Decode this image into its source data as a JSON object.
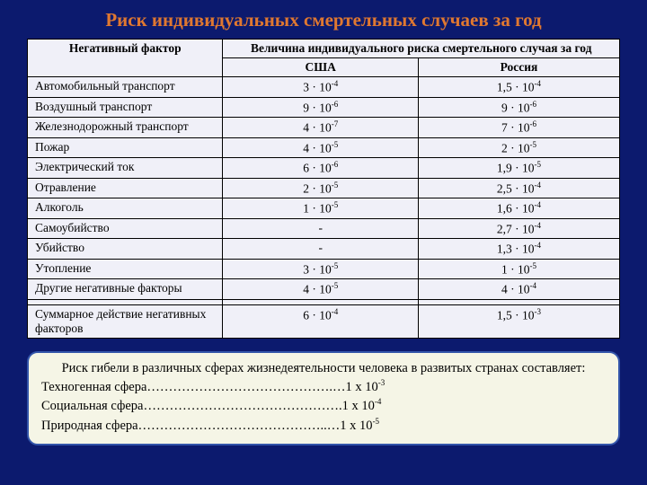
{
  "title": "Риск индивидуальных смертельных случаев за год",
  "table": {
    "header": {
      "factor": "Негативный фактор",
      "risk": "Величина индивидуального риска смертельного случая за год",
      "usa": "США",
      "russia": "Россия"
    },
    "rows": [
      {
        "factor": "Автомобильный транспорт",
        "usa_m": "3",
        "usa_e": "-4",
        "ru_m": "1,5",
        "ru_e": "-4"
      },
      {
        "factor": "Воздушный транспорт",
        "usa_m": "9",
        "usa_e": "-6",
        "ru_m": "9",
        "ru_e": "-6"
      },
      {
        "factor": "Железнодорожный транспорт",
        "usa_m": "4",
        "usa_e": "-7",
        "ru_m": "7",
        "ru_e": "-6"
      },
      {
        "factor": "Пожар",
        "usa_m": "4",
        "usa_e": "-5",
        "ru_m": "2",
        "ru_e": "-5"
      },
      {
        "factor": "Электрический ток",
        "usa_m": "6",
        "usa_e": "-6",
        "ru_m": "1,9",
        "ru_e": "-5"
      },
      {
        "factor": "Отравление",
        "usa_m": "2",
        "usa_e": "-5",
        "ru_m": "2,5",
        "ru_e": "-4"
      },
      {
        "factor": "Алкоголь",
        "usa_m": "1",
        "usa_e": "-5",
        "ru_m": "1,6",
        "ru_e": "-4"
      },
      {
        "factor": "Самоубийство",
        "usa_m": "-",
        "usa_e": "",
        "ru_m": "2,7",
        "ru_e": "-4"
      },
      {
        "factor": "Убийство",
        "usa_m": "-",
        "usa_e": "",
        "ru_m": "1,3",
        "ru_e": "-4"
      },
      {
        "factor": "Утопление",
        "usa_m": "3",
        "usa_e": "-5",
        "ru_m": "1",
        "ru_e": "-5"
      },
      {
        "factor": "Другие негативные факторы",
        "usa_m": "4",
        "usa_e": "-5",
        "ru_m": "4",
        "ru_e": "-4"
      }
    ],
    "summary": {
      "factor": "Суммарное действие негативных факторов",
      "usa_m": "6",
      "usa_e": "-4",
      "ru_m": "1,5",
      "ru_e": "-3"
    }
  },
  "panel": {
    "head": "Риск гибели в различных сферах жизнедеятельности человека в развитых странах составляет:",
    "lines": [
      {
        "label": "Техногенная сфера",
        "dots": "…………………………………….…",
        "val": "1 х 10",
        "exp": "-3"
      },
      {
        "label": "Социальная сфера",
        "dots": "……………………………………….",
        "val": "1 х 10",
        "exp": "-4"
      },
      {
        "label": "Природная сфера",
        "dots": "……………………………………..…",
        "val": "1 х 10",
        "exp": "-5"
      }
    ]
  },
  "colors": {
    "background": "#0c1a6e",
    "title": "#e07830",
    "table_bg": "#f0f0f8",
    "panel_bg": "#f5f5e6",
    "panel_border": "#3355aa"
  }
}
